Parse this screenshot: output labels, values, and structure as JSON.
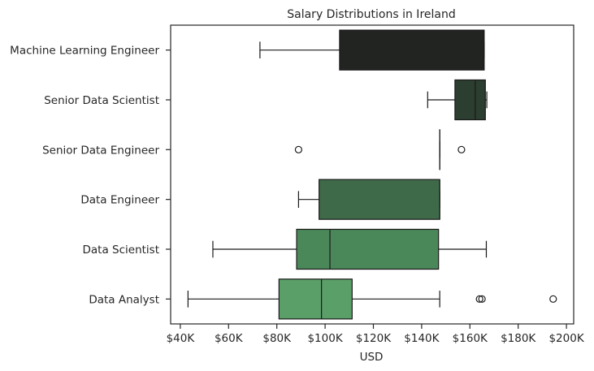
{
  "chart_data": {
    "type": "boxplot",
    "orientation": "horizontal",
    "title": "Salary Distributions in Ireland",
    "xlabel": "USD",
    "ylabel": "",
    "xlim": [
      36000,
      203000
    ],
    "xticks": [
      40000,
      60000,
      80000,
      100000,
      120000,
      140000,
      160000,
      180000,
      200000
    ],
    "xtick_labels": [
      "$40K",
      "$60K",
      "$80K",
      "$100K",
      "$120K",
      "$140K",
      "$160K",
      "$180K",
      "$200K"
    ],
    "grid": false,
    "categories": [
      "Machine Learning Engineer",
      "Senior Data Scientist",
      "Senior Data Engineer",
      "Data Engineer",
      "Data Scientist",
      "Data Analyst"
    ],
    "boxes": [
      {
        "category": "Machine Learning Engineer",
        "whisker_low": 73000,
        "q1": 106000,
        "median": 165800,
        "q3": 165900,
        "whisker_high": 165900,
        "outliers": [],
        "color": "#222421"
      },
      {
        "category": "Senior Data Scientist",
        "whisker_low": 142500,
        "q1": 153800,
        "median": 162200,
        "q3": 166400,
        "whisker_high": 167000,
        "outliers": [],
        "color": "#2b3e2f"
      },
      {
        "category": "Senior Data Engineer",
        "whisker_low": 147500,
        "q1": 147500,
        "median": 147500,
        "q3": 147500,
        "whisker_high": 147500,
        "outliers": [
          89000,
          156500
        ],
        "color": "#35553d"
      },
      {
        "category": "Data Engineer",
        "whisker_low": 89000,
        "q1": 97500,
        "median": 147500,
        "q3": 147500,
        "whisker_high": 147500,
        "outliers": [],
        "color": "#3f6a4a"
      },
      {
        "category": "Data Scientist",
        "whisker_low": 53500,
        "q1": 88200,
        "median": 102000,
        "q3": 147000,
        "whisker_high": 166800,
        "outliers": [],
        "color": "#4a8859"
      },
      {
        "category": "Data Analyst",
        "whisker_low": 43200,
        "q1": 80900,
        "median": 98500,
        "q3": 111200,
        "whisker_high": 147500,
        "outliers": [
          164000,
          165000,
          194500
        ],
        "color": "#5a9f68"
      }
    ]
  }
}
